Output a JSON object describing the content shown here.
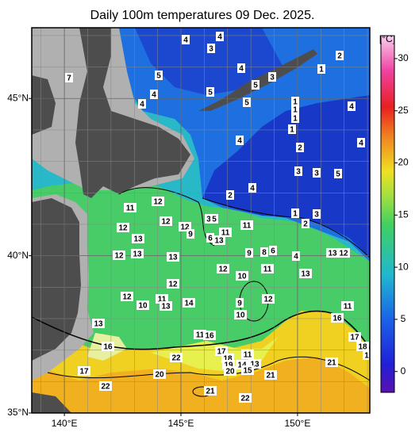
{
  "title": "Daily 100m temperatures 09 Dec. 2025.",
  "lon_ticks": [
    {
      "value": 140,
      "label": "140°E"
    },
    {
      "value": 145,
      "label": "145°E"
    },
    {
      "value": 150,
      "label": "150°E"
    }
  ],
  "lat_ticks": [
    {
      "value": 35,
      "label": "35°N"
    },
    {
      "value": 40,
      "label": "40°N"
    },
    {
      "value": 45,
      "label": "45°N"
    }
  ],
  "lon_lim": [
    138.6,
    153.1
  ],
  "lat_lim": [
    35,
    47.25
  ],
  "colorbar": {
    "label": "[°C]",
    "lim": [
      -2,
      32.2
    ],
    "ticks": [
      0,
      5,
      10,
      15,
      20,
      25,
      30
    ]
  },
  "contour_labels": [
    4,
    4,
    3,
    7,
    5,
    4,
    4,
    5,
    4,
    5,
    3,
    5,
    1,
    2,
    1,
    1,
    1,
    1,
    4,
    4,
    4,
    2,
    3,
    3,
    5,
    4,
    2,
    1,
    3,
    2,
    11,
    12,
    12,
    12,
    12,
    3,
    5,
    9,
    6,
    11,
    11,
    13,
    13,
    12,
    13,
    13,
    9,
    8,
    6,
    4,
    13,
    12,
    12,
    10,
    11,
    13,
    12,
    12,
    10,
    11,
    13,
    14,
    9,
    12,
    10,
    11,
    16,
    13,
    11,
    16,
    16,
    17,
    18,
    1,
    22,
    17,
    18,
    11,
    19,
    14,
    13,
    20,
    15,
    21,
    17,
    20,
    21,
    22,
    21,
    22
  ]
}
